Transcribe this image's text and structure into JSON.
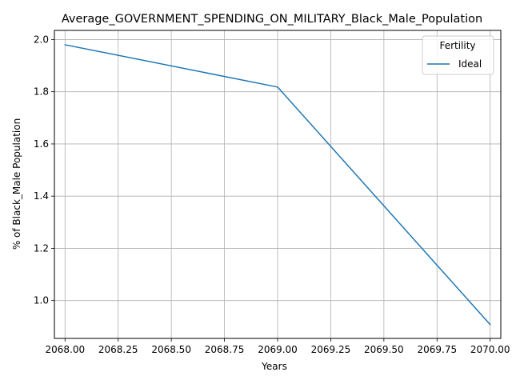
{
  "chart_data": {
    "type": "line",
    "title": "Average_GOVERNMENT_SPENDING_ON_MILITARY_Black_Male_Population",
    "xlabel": "Years",
    "ylabel": "% of Black_Male Population",
    "xlim": [
      2067.95,
      2070.05
    ],
    "ylim": [
      0.855,
      2.035
    ],
    "xticks": [
      2068.0,
      2068.25,
      2068.5,
      2068.75,
      2069.0,
      2069.25,
      2069.5,
      2069.75,
      2070.0
    ],
    "xtick_labels": [
      "2068.00",
      "2068.25",
      "2068.50",
      "2068.75",
      "2069.00",
      "2069.25",
      "2069.50",
      "2069.75",
      "2070.00"
    ],
    "yticks": [
      1.0,
      1.2,
      1.4,
      1.6,
      1.8,
      2.0
    ],
    "ytick_labels": [
      "1.0",
      "1.2",
      "1.4",
      "1.6",
      "1.8",
      "2.0"
    ],
    "grid": true,
    "legend": {
      "title": "Fertility",
      "position": "top-right"
    },
    "series": [
      {
        "name": "Ideal",
        "color": "#1f77b4",
        "x": [
          2068,
          2069,
          2070
        ],
        "y": [
          1.98,
          1.818,
          0.908
        ]
      }
    ]
  }
}
